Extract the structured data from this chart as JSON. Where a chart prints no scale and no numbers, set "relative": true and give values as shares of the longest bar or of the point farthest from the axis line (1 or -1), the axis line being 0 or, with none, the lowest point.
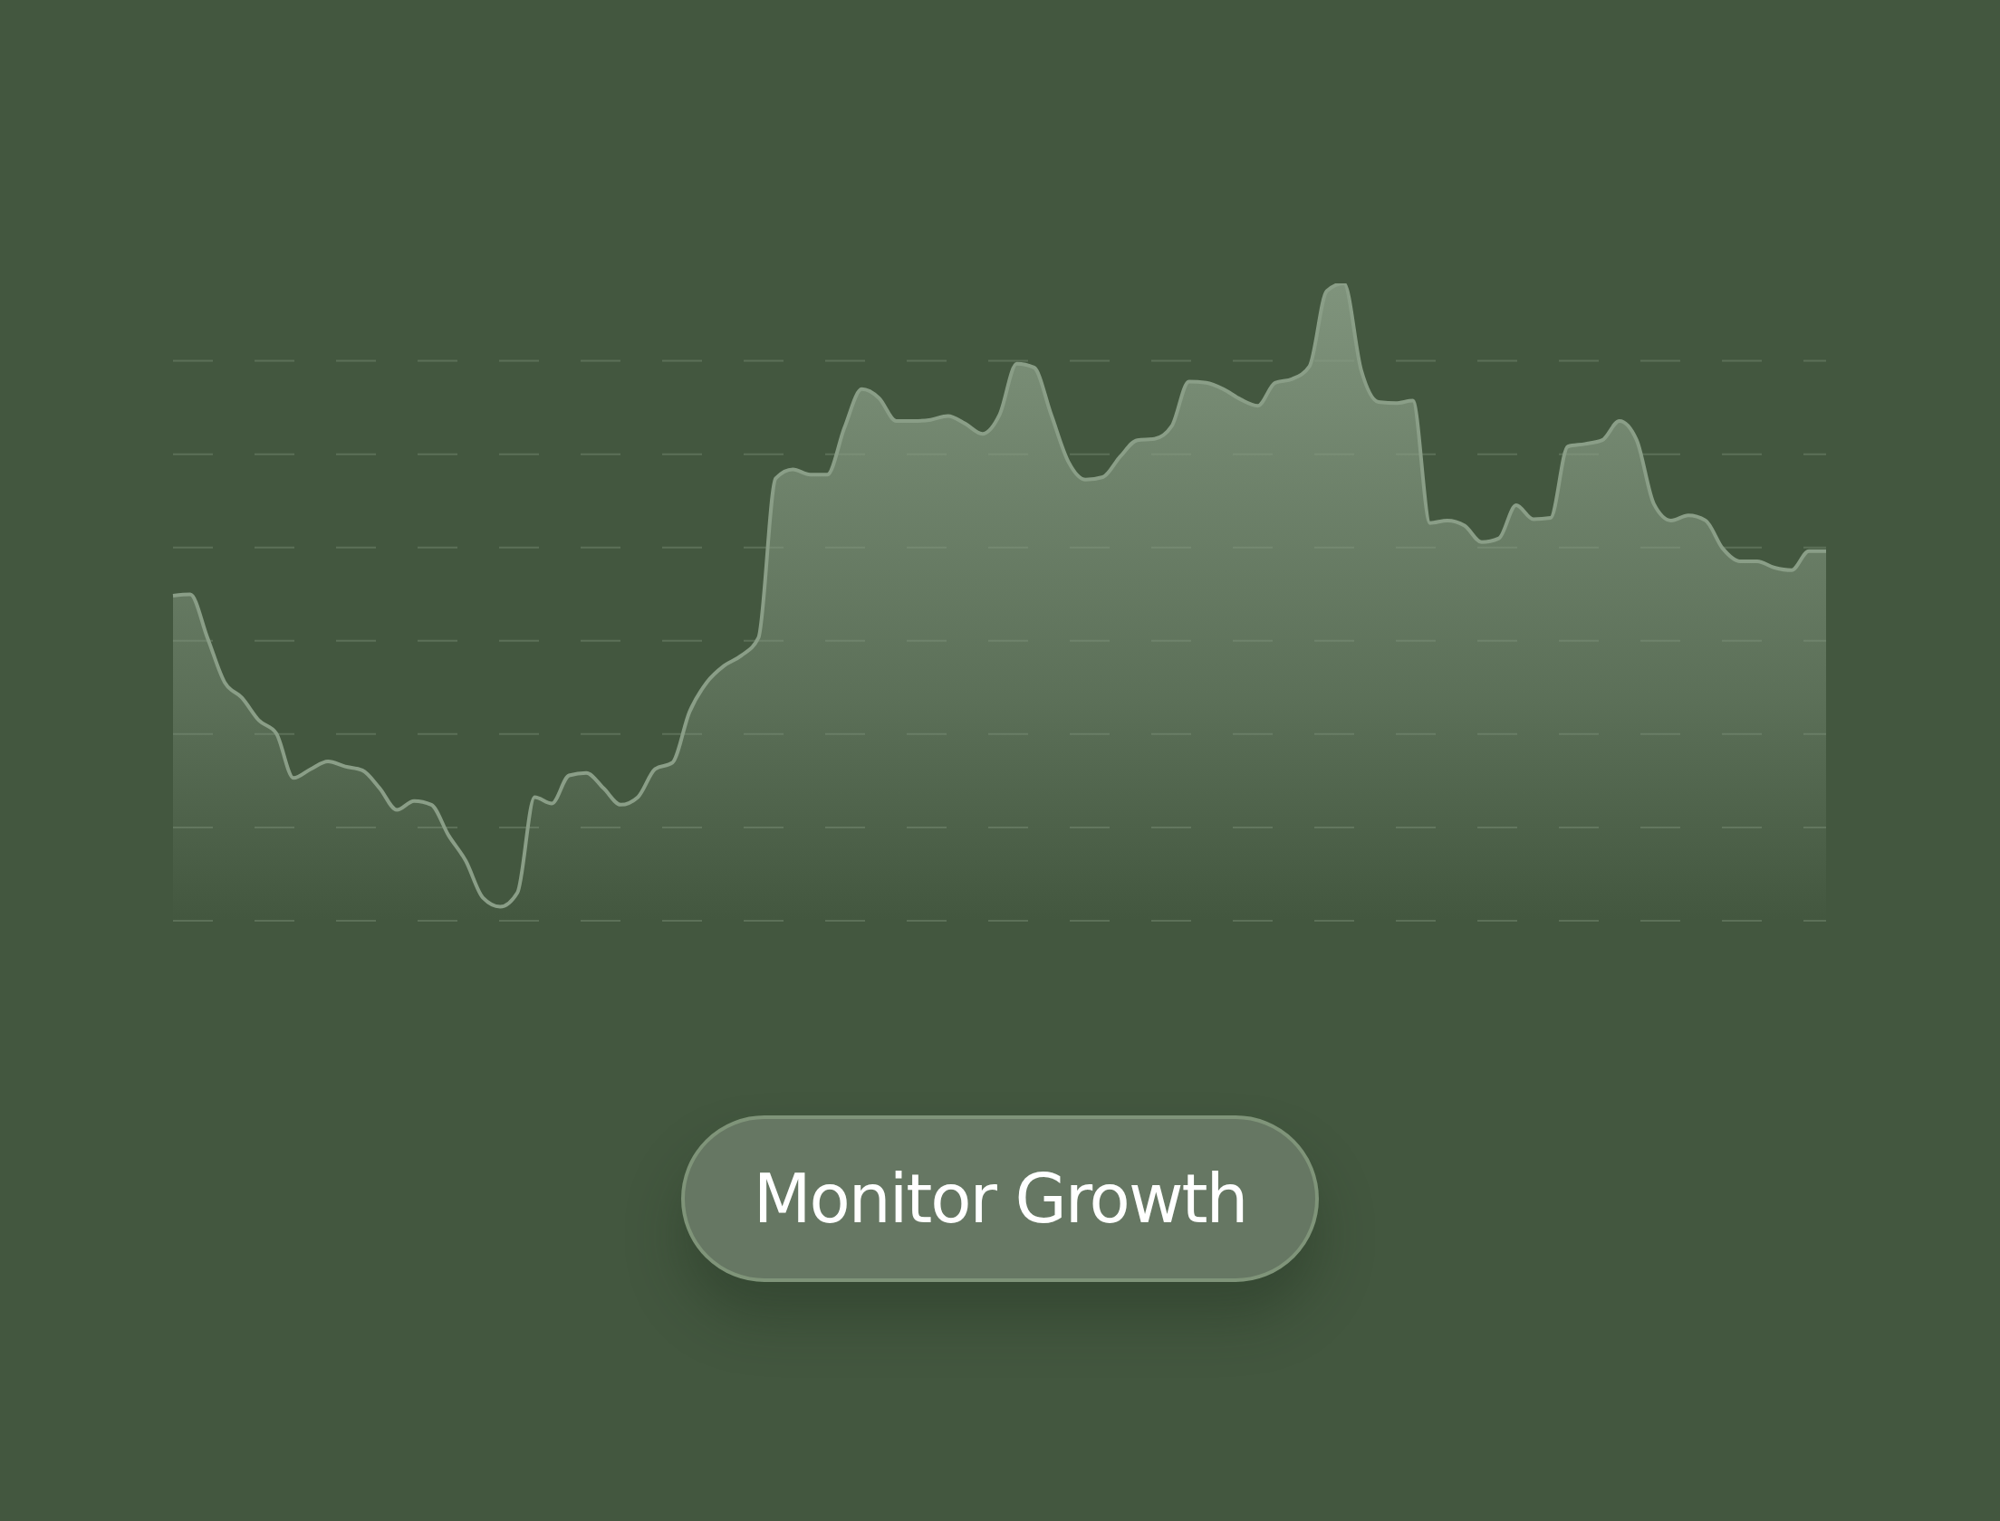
{
  "chart_data": {
    "type": "area",
    "relative": true,
    "grid": "y",
    "marker": "none",
    "line_style": "solid",
    "categories": [
      null,
      null,
      null,
      null,
      null,
      null,
      null,
      null,
      null,
      null,
      null,
      null,
      null,
      null,
      null,
      null,
      null,
      null,
      null,
      null,
      null,
      null,
      null,
      null,
      null,
      null,
      null,
      null,
      null,
      null,
      null,
      null,
      null,
      null,
      null,
      null,
      null,
      null,
      null,
      null,
      null,
      null,
      null,
      null,
      null,
      null,
      null,
      null,
      null,
      null,
      null,
      null,
      null,
      null,
      null,
      null,
      null,
      null,
      null,
      null,
      null,
      null,
      null,
      null,
      null,
      null,
      null,
      null,
      null,
      null,
      null,
      null,
      null,
      null,
      null,
      null,
      null,
      null,
      null,
      null,
      null,
      null,
      null,
      null,
      null,
      null,
      null,
      null,
      null,
      null,
      null,
      null,
      null,
      null,
      null,
      null,
      null
    ],
    "series": [
      {
        "color": "#8a9e87",
        "values": [
          0.51,
          0.512,
          0.444,
          0.374,
          0.35,
          0.314,
          0.294,
          0.224,
          0.238,
          0.25,
          0.242,
          0.236,
          0.208,
          0.174,
          0.188,
          0.182,
          0.134,
          0.094,
          0.036,
          0.022,
          0.044,
          0.194,
          0.184,
          0.228,
          0.232,
          0.208,
          0.182,
          0.194,
          0.238,
          0.248,
          0.328,
          0.374,
          0.4,
          0.416,
          0.444,
          0.694,
          0.708,
          0.7,
          0.7,
          0.774,
          0.834,
          0.82,
          0.784,
          0.784,
          0.786,
          0.792,
          0.78,
          0.764,
          0.794,
          0.874,
          0.868,
          0.794,
          0.72,
          0.692,
          0.696,
          0.728,
          0.754,
          0.756,
          0.776,
          0.846,
          0.844,
          0.834,
          0.818,
          0.808,
          0.844,
          0.85,
          0.87,
          0.988,
          1,
          0.864,
          0.814,
          0.812,
          0.816,
          0.624,
          0.628,
          0.62,
          0.594,
          0.6,
          0.652,
          0.63,
          0.632,
          0.744,
          0.748,
          0.754,
          0.784,
          0.754,
          0.654,
          0.628,
          0.636,
          0.628,
          0.584,
          0.564,
          0.564,
          0.554,
          0.55,
          0.58,
          0.58
        ]
      }
    ],
    "annotations": [
      "Monitor Growth"
    ]
  }
}
